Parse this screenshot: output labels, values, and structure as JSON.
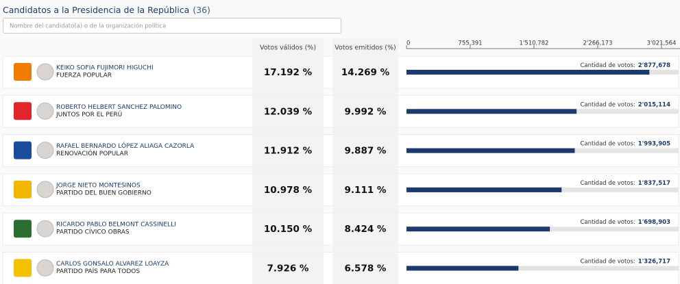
{
  "title": "Candidatos a la Presidencia de la República",
  "count": "(36)",
  "search_placeholder": "Nombre del candidato(a) o de la organización política",
  "columns": {
    "valid": "Votos válidos (%)",
    "emitted": "Votos emitidos (%)"
  },
  "axis": {
    "lim": [
      0,
      3021564
    ],
    "ticks": [
      0,
      {
        "value": 755391,
        "label": "755,391"
      },
      {
        "value": 1510782,
        "label": "1'510,782"
      },
      {
        "value": 2266173,
        "label": "2'266,173"
      },
      {
        "value": 3021564,
        "label": "3'021,564"
      }
    ]
  },
  "votes_label": "Cantidad de votos:",
  "rows": [
    {
      "candidate": "KEIKO SOFIA FUJIMORI HIGUCHI",
      "party": "FUERZA POPULAR",
      "valid": "17.192 %",
      "emitted": "14.269 %",
      "votes": {
        "value": 2877678,
        "label": "2'877,678"
      }
    },
    {
      "candidate": "ROBERTO HELBERT SANCHEZ PALOMINO",
      "party": "JUNTOS POR EL PERÚ",
      "valid": "12.039 %",
      "emitted": "9.992 %",
      "votes": {
        "value": 2015114,
        "label": "2'015,114"
      }
    },
    {
      "candidate": "RAFAEL BERNARDO LÓPEZ ALIAGA CAZORLA",
      "party": "RENOVACIÓN POPULAR",
      "valid": "11.912 %",
      "emitted": "9.887 %",
      "votes": {
        "value": 1993905,
        "label": "1'993,905"
      }
    },
    {
      "candidate": "JORGE NIETO MONTESINOS",
      "party": "PARTIDO DEL BUEN GOBIERNO",
      "valid": "10.978 %",
      "emitted": "9.111 %",
      "votes": {
        "value": 1837517,
        "label": "1'837,517"
      }
    },
    {
      "candidate": "RICARDO PABLO BELMONT CASSINELLI",
      "party": "PARTIDO CÍVICO OBRAS",
      "valid": "10.150 %",
      "emitted": "8.424 %",
      "votes": {
        "value": 1698903,
        "label": "1'698,903"
      }
    },
    {
      "candidate": "CARLOS GONSALO ALVAREZ LOAYZA",
      "party": "PARTIDO PAÍS PARA TODOS",
      "valid": "7.926 %",
      "emitted": "6.578 %",
      "votes": {
        "value": 1326717,
        "label": "1'326,717"
      }
    }
  ]
}
